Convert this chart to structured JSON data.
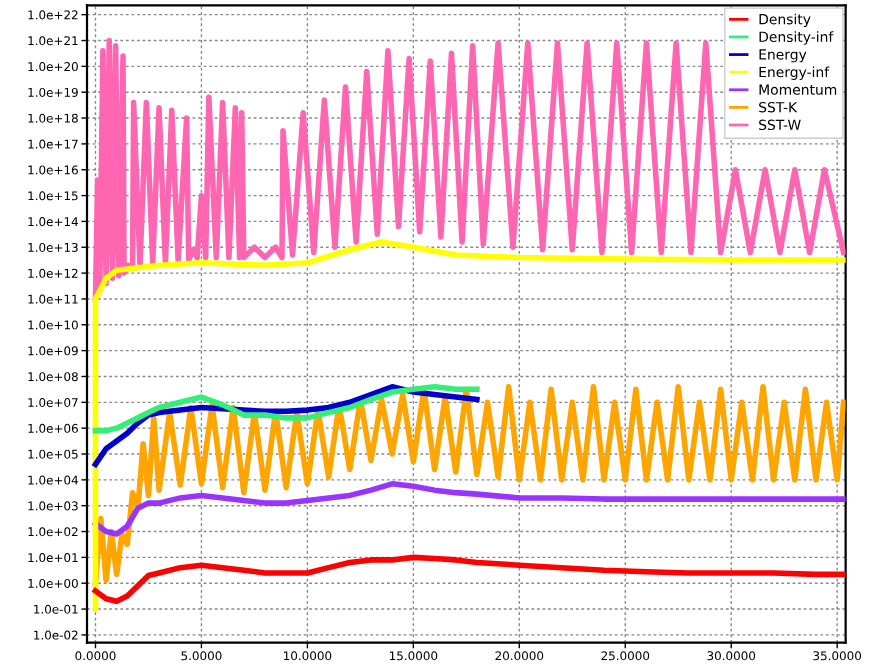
{
  "chart_data": {
    "type": "line",
    "x": [
      0,
      0.5,
      1,
      1.5,
      2,
      2.5,
      3,
      4,
      5,
      6,
      7,
      8,
      9,
      10,
      11,
      12,
      13,
      14,
      15,
      16,
      17,
      18,
      20,
      22,
      24,
      26,
      28,
      30,
      32,
      34,
      35.3
    ],
    "series": [
      {
        "name": "Density",
        "color": "#ff0000",
        "values": [
          0.5,
          0.25,
          0.2,
          0.32,
          0.8,
          2,
          2.5,
          4,
          5,
          4,
          3.2,
          2.5,
          2.5,
          2.5,
          4,
          6.3,
          8,
          8,
          10,
          9,
          8,
          6.3,
          5,
          4,
          3.2,
          2.8,
          2.5,
          2.5,
          2.5,
          2.2,
          2.2
        ]
      },
      {
        "name": "Density-inf",
        "color": "#33ee77",
        "values": [
          800000.0,
          800000.0,
          1000000.0,
          1600000.0,
          2500000.0,
          4000000.0,
          6300000.0,
          10000000.0,
          16000000.0,
          8000000.0,
          3200000.0,
          3200000.0,
          2500000.0,
          2500000.0,
          4000000.0,
          6300000.0,
          13000000.0,
          25000000.0,
          32000000.0,
          40000000.0,
          32000000.0,
          32000000.0,
          null,
          null,
          null,
          null,
          null,
          null,
          null,
          null,
          null
        ]
      },
      {
        "name": "Energy",
        "color": "#0000cc",
        "values": [
          40000.0,
          160000.0,
          320000.0,
          630000.0,
          1600000.0,
          3200000.0,
          4000000.0,
          5000000.0,
          6300000.0,
          5600000.0,
          5000000.0,
          4500000.0,
          4500000.0,
          5000000.0,
          6300000.0,
          10000000.0,
          20000000.0,
          40000000.0,
          25000000.0,
          20000000.0,
          16000000.0,
          13000000.0,
          null,
          null,
          null,
          null,
          null,
          null,
          null,
          null,
          null
        ]
      },
      {
        "name": "Energy-inf",
        "color": "#ffff00",
        "x": [
          0,
          0,
          0.5,
          1,
          3,
          5,
          8,
          10,
          12,
          13.5,
          15,
          17,
          20,
          25,
          30,
          35.3
        ],
        "values": [
          0.1,
          100000000000.0,
          630000000000.0,
          1300000000000.0,
          2000000000000.0,
          2500000000000.0,
          2000000000000.0,
          2500000000000.0,
          8000000000000.0,
          16000000000000.0,
          10000000000000.0,
          5000000000000.0,
          4000000000000.0,
          3500000000000.0,
          3200000000000.0,
          3200000000000.0
        ]
      },
      {
        "name": "Momentum",
        "color": "#9933ff",
        "values": [
          200,
          100,
          80,
          160,
          800,
          1260,
          1260,
          2000,
          2500,
          2000,
          1600,
          1260,
          1260,
          1600,
          2000,
          2500,
          4000,
          7000,
          5600,
          4000,
          3200,
          2800,
          2000,
          2000,
          1800,
          1800,
          1800,
          1800,
          1800,
          1800,
          1800
        ]
      },
      {
        "name": "SST-K",
        "color": "#ffa500",
        "x": [
          0,
          0.25,
          0.5,
          0.75,
          1,
          1.25,
          1.5,
          1.75,
          2,
          2.25,
          2.5,
          2.75,
          3,
          3.5,
          4,
          4.5,
          5,
          5.5,
          6,
          6.5,
          7,
          7.5,
          8,
          8.5,
          9,
          9.5,
          10,
          10.5,
          11,
          11.5,
          12,
          12.5,
          13,
          13.5,
          14,
          14.5,
          15,
          15.5,
          16,
          16.5,
          17,
          17.5,
          18,
          18.5,
          19,
          19.5,
          20,
          20.5,
          21,
          21.5,
          22,
          22.5,
          23,
          23.5,
          24,
          24.5,
          25,
          25.5,
          26,
          26.5,
          27,
          27.5,
          28,
          28.5,
          29,
          29.5,
          30,
          30.5,
          31,
          31.5,
          32,
          32.5,
          33,
          33.5,
          34,
          34.5,
          35,
          35.3
        ],
        "values": [
          1,
          320,
          1.3,
          100,
          2.2,
          80,
          32,
          3200,
          800,
          250000.0,
          2500,
          2500000.0,
          4000,
          4000000.0,
          6300,
          6300000.0,
          7000,
          8000000.0,
          5000,
          6300000.0,
          3200,
          4000000.0,
          4000,
          4500000.0,
          5000,
          4000000.0,
          7000,
          5000000.0,
          13000.0,
          8000000.0,
          25000.0,
          13000000.0,
          56000.0,
          13000000.0,
          100000.0,
          20000000.0,
          50000.0,
          32000000.0,
          25000.0,
          16000000.0,
          20000.0,
          32000000.0,
          16000.0,
          10000000.0,
          13000.0,
          40000000.0,
          10000.0,
          10000000.0,
          10000.0,
          32000000.0,
          10000.0,
          10000000.0,
          10000.0,
          40000000.0,
          10000.0,
          10000000.0,
          10000.0,
          32000000.0,
          10000.0,
          10000000.0,
          10000.0,
          40000000.0,
          10000.0,
          10000000.0,
          10000.0,
          32000000.0,
          10000.0,
          10000000.0,
          10000.0,
          40000000.0,
          10000.0,
          10000000.0,
          10000.0,
          32000000.0,
          10000.0,
          10000000.0,
          10000.0,
          10000000.0
        ]
      },
      {
        "name": "SST-W",
        "color": "#ff66b2",
        "x": [
          0,
          0.1,
          0.2,
          0.35,
          0.5,
          0.65,
          0.8,
          0.95,
          1.1,
          1.3,
          1.35,
          1.55,
          1.75,
          1.8,
          2.1,
          2.4,
          2.7,
          3.0,
          3.3,
          3.6,
          3.9,
          4.3,
          4.4,
          4.6,
          4.8,
          5.0,
          5.2,
          5.35,
          5.7,
          6.0,
          6.3,
          6.6,
          6.8,
          6.9,
          7.0,
          7.5,
          8.0,
          8.5,
          8.8,
          8.85,
          9.3,
          9.8,
          10.3,
          10.8,
          11.3,
          11.8,
          12.3,
          12.8,
          13.3,
          13.8,
          14.3,
          14.8,
          15.3,
          15.8,
          16.3,
          16.8,
          17.3,
          17.8,
          18.3,
          19,
          19.7,
          20.4,
          21.1,
          21.8,
          22.5,
          23.2,
          23.9,
          24.6,
          25.3,
          26,
          26.7,
          27.4,
          28.1,
          28.8,
          29.5,
          30.2,
          30.9,
          31.6,
          32.3,
          33,
          33.7,
          34.4,
          35.3
        ],
        "values": [
          100000000000.0,
          4000000000000000.0,
          200000000000.0,
          4e+20,
          400000000000.0,
          1e+21,
          630000000000.0,
          6.3e+20,
          800000000000.0,
          2.5e+20,
          1000000000000.0,
          2000000000000.0,
          1600000000000.0,
          4e+18,
          2000000000000.0,
          4e+18,
          2500000000000.0,
          2.5e+18,
          2500000000000.0,
          2e+18,
          3200000000000.0,
          1e+18,
          3200000000000.0,
          8000000000000.0,
          4000000000000.0,
          1000000000000000.0,
          4000000000000.0,
          6.3e+18,
          4000000000000.0,
          4e+18,
          4000000000000.0,
          2.5e+18,
          4000000000000.0,
          1.6e+18,
          4000000000000.0,
          10000000000000.0,
          4000000000000.0,
          10000000000000.0,
          4000000000000.0,
          3.2e+17,
          5000000000000.0,
          1.6e+18,
          6300000000000.0,
          5e+18,
          10000000000000.0,
          1.6e+19,
          16000000000000.0,
          6.3e+19,
          32000000000000.0,
          4e+20,
          63000000000000.0,
          2e+20,
          40000000000000.0,
          1.6e+20,
          25000000000000.0,
          3.2e+20,
          16000000000000.0,
          6.3e+20,
          13000000000000.0,
          8e+20,
          10000000000000.0,
          8e+20,
          8000000000000.0,
          8e+20,
          8000000000000.0,
          8e+20,
          6300000000000.0,
          8e+20,
          6300000000000.0,
          8e+20,
          6300000000000.0,
          8e+20,
          6300000000000.0,
          8e+20,
          6300000000000.0,
          1e+16,
          6300000000000.0,
          1e+16,
          6300000000000.0,
          1e+16,
          6300000000000.0,
          1e+16,
          6300000000000.0
        ]
      }
    ],
    "log": "y",
    "xlim": [
      -0.4,
      35.4
    ],
    "ylim": [
      0.005,
      2.3e+22
    ],
    "xticks": [
      {
        "value": 0,
        "label": "0.0000"
      },
      {
        "value": 5,
        "label": "5.0000"
      },
      {
        "value": 10,
        "label": "10.0000"
      },
      {
        "value": 15,
        "label": "15.0000"
      },
      {
        "value": 20,
        "label": "20.0000"
      },
      {
        "value": 25,
        "label": "25.0000"
      },
      {
        "value": 30,
        "label": "30.0000"
      },
      {
        "value": 35,
        "label": "35.0000"
      }
    ],
    "yticks": [
      {
        "value": 0.01,
        "label": "1.0e-02"
      },
      {
        "value": 0.1,
        "label": "1.0e-01"
      },
      {
        "value": 1,
        "label": "1.0e+00"
      },
      {
        "value": 10,
        "label": "1.0e+01"
      },
      {
        "value": 100,
        "label": "1.0e+02"
      },
      {
        "value": 1000.0,
        "label": "1.0e+03"
      },
      {
        "value": 10000.0,
        "label": "1.0e+04"
      },
      {
        "value": 100000.0,
        "label": "1.0e+05"
      },
      {
        "value": 1000000.0,
        "label": "1.0e+06"
      },
      {
        "value": 10000000.0,
        "label": "1.0e+07"
      },
      {
        "value": 100000000.0,
        "label": "1.0e+08"
      },
      {
        "value": 1000000000.0,
        "label": "1.0e+09"
      },
      {
        "value": 10000000000.0,
        "label": "1.0e+10"
      },
      {
        "value": 100000000000.0,
        "label": "1.0e+11"
      },
      {
        "value": 1000000000000.0,
        "label": "1.0e+12"
      },
      {
        "value": 10000000000000.0,
        "label": "1.0e+13"
      },
      {
        "value": 100000000000000.0,
        "label": "1.0e+14"
      },
      {
        "value": 1000000000000000.0,
        "label": "1.0e+15"
      },
      {
        "value": 1e+16,
        "label": "1.0e+16"
      },
      {
        "value": 1e+17,
        "label": "1.0e+17"
      },
      {
        "value": 1e+18,
        "label": "1.0e+18"
      },
      {
        "value": 1e+19,
        "label": "1.0e+19"
      },
      {
        "value": 1e+20,
        "label": "1.0e+20"
      },
      {
        "value": 1e+21,
        "label": "1.0e+21"
      },
      {
        "value": 1e+22,
        "label": "1.0e+22"
      }
    ],
    "grid": true,
    "legend": "top right"
  }
}
